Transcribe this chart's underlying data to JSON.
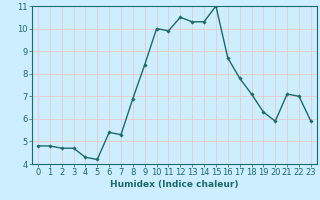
{
  "xlabel": "Humidex (Indice chaleur)",
  "x": [
    0,
    1,
    2,
    3,
    4,
    5,
    6,
    7,
    8,
    9,
    10,
    11,
    12,
    13,
    14,
    15,
    16,
    17,
    18,
    19,
    20,
    21,
    22,
    23
  ],
  "y": [
    4.8,
    4.8,
    4.7,
    4.7,
    4.3,
    4.2,
    5.4,
    5.3,
    6.9,
    8.4,
    10.0,
    9.9,
    10.5,
    10.3,
    10.3,
    11.0,
    8.7,
    7.8,
    7.1,
    6.3,
    5.9,
    7.1,
    7.0,
    5.9
  ],
  "line_color": "#1a6b6b",
  "marker": "D",
  "marker_size": 1.8,
  "line_width": 1.0,
  "background_color": "#cceeff",
  "grid_color": "#e8c8c8",
  "axis_label_color": "#1a6b6b",
  "tick_label_color": "#1a6b6b",
  "ylim": [
    4,
    11
  ],
  "xlim": [
    -0.5,
    23.5
  ],
  "yticks": [
    4,
    5,
    6,
    7,
    8,
    9,
    10,
    11
  ],
  "xticks": [
    0,
    1,
    2,
    3,
    4,
    5,
    6,
    7,
    8,
    9,
    10,
    11,
    12,
    13,
    14,
    15,
    16,
    17,
    18,
    19,
    20,
    21,
    22,
    23
  ],
  "xlabel_fontsize": 6.5,
  "tick_fontsize": 6.0,
  "spine_color": "#1a6b6b"
}
